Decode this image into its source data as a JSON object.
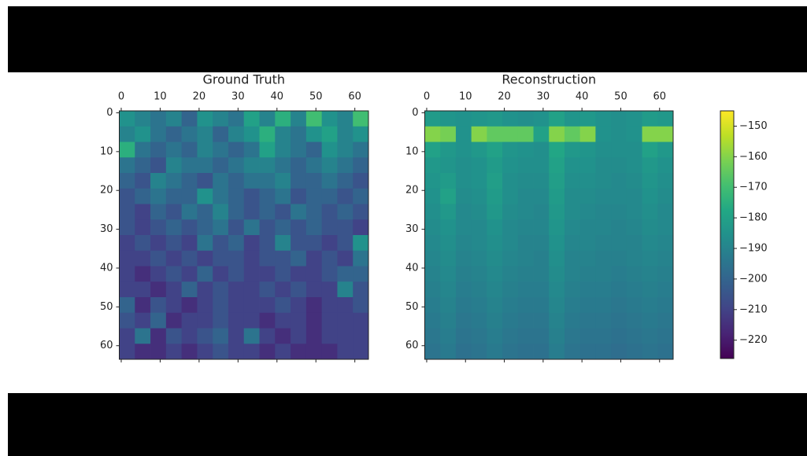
{
  "chart_data": [
    {
      "type": "heatmap",
      "title": "Ground Truth",
      "xlim": [
        -0.5,
        63.5
      ],
      "ylim": [
        -0.5,
        63.5
      ],
      "y_inverted": true,
      "xticks": [
        0,
        10,
        20,
        30,
        40,
        50,
        60
      ],
      "yticks": [
        0,
        10,
        20,
        30,
        40,
        50,
        60
      ],
      "z": [
        [
          -185,
          -190,
          -195,
          -190,
          -200,
          -185,
          -190,
          -195,
          -180,
          -190,
          -175,
          -190,
          -170,
          -185,
          -190,
          -170
        ],
        [
          -190,
          -185,
          -195,
          -200,
          -195,
          -190,
          -200,
          -190,
          -185,
          -175,
          -190,
          -195,
          -185,
          -180,
          -190,
          -185
        ],
        [
          -175,
          -195,
          -200,
          -195,
          -200,
          -190,
          -195,
          -200,
          -195,
          -180,
          -190,
          -195,
          -200,
          -185,
          -190,
          -195
        ],
        [
          -195,
          -200,
          -205,
          -190,
          -195,
          -195,
          -200,
          -195,
          -190,
          -190,
          -195,
          -200,
          -195,
          -190,
          -195,
          -200
        ],
        [
          -200,
          -205,
          -190,
          -195,
          -200,
          -205,
          -195,
          -200,
          -195,
          -195,
          -190,
          -200,
          -200,
          -195,
          -200,
          -205
        ],
        [
          -205,
          -200,
          -195,
          -200,
          -200,
          -185,
          -195,
          -200,
          -205,
          -200,
          -195,
          -205,
          -200,
          -200,
          -205,
          -200
        ],
        [
          -205,
          -210,
          -200,
          -205,
          -195,
          -200,
          -190,
          -200,
          -205,
          -200,
          -205,
          -195,
          -200,
          -205,
          -200,
          -205
        ],
        [
          -205,
          -210,
          -205,
          -200,
          -205,
          -200,
          -195,
          -205,
          -195,
          -205,
          -200,
          -205,
          -200,
          -205,
          -205,
          -210
        ],
        [
          -210,
          -205,
          -210,
          -205,
          -210,
          -195,
          -205,
          -200,
          -210,
          -205,
          -190,
          -205,
          -205,
          -210,
          -205,
          -185
        ],
        [
          -210,
          -210,
          -205,
          -210,
          -205,
          -210,
          -205,
          -205,
          -210,
          -205,
          -205,
          -200,
          -210,
          -205,
          -210,
          -195
        ],
        [
          -210,
          -215,
          -210,
          -205,
          -210,
          -200,
          -210,
          -205,
          -210,
          -210,
          -205,
          -210,
          -210,
          -205,
          -200,
          -200
        ],
        [
          -210,
          -210,
          -215,
          -210,
          -200,
          -210,
          -205,
          -210,
          -210,
          -205,
          -210,
          -205,
          -210,
          -210,
          -190,
          -205
        ],
        [
          -200,
          -215,
          -205,
          -210,
          -215,
          -210,
          -205,
          -210,
          -210,
          -210,
          -205,
          -210,
          -215,
          -210,
          -210,
          -205
        ],
        [
          -205,
          -210,
          -200,
          -215,
          -210,
          -210,
          -205,
          -210,
          -210,
          -215,
          -210,
          -210,
          -215,
          -210,
          -210,
          -210
        ],
        [
          -210,
          -195,
          -215,
          -205,
          -210,
          -205,
          -200,
          -210,
          -195,
          -210,
          -215,
          -210,
          -215,
          -210,
          -210,
          -210
        ],
        [
          -210,
          -215,
          -215,
          -210,
          -215,
          -210,
          -205,
          -210,
          -210,
          -215,
          -210,
          -215,
          -215,
          -215,
          -210,
          -210
        ]
      ]
    },
    {
      "type": "heatmap",
      "title": "Reconstruction",
      "xlim": [
        -0.5,
        63.5
      ],
      "ylim": [
        -0.5,
        63.5
      ],
      "y_inverted": true,
      "xticks": [
        0,
        10,
        20,
        30,
        40,
        50,
        60
      ],
      "yticks": [
        0,
        10,
        20,
        30,
        40,
        50,
        60
      ],
      "z": [
        [
          -182,
          -184,
          -185,
          -184,
          -183,
          -185,
          -186,
          -185,
          -180,
          -184,
          -183,
          -185,
          -186,
          -185,
          -182,
          -183
        ],
        [
          -160,
          -162,
          -185,
          -160,
          -165,
          -165,
          -165,
          -180,
          -160,
          -165,
          -160,
          -185,
          -186,
          -185,
          -160,
          -160
        ],
        [
          -180,
          -183,
          -185,
          -183,
          -180,
          -184,
          -185,
          -186,
          -178,
          -183,
          -184,
          -186,
          -186,
          -186,
          -180,
          -183
        ],
        [
          -183,
          -184,
          -186,
          -185,
          -182,
          -185,
          -186,
          -186,
          -180,
          -185,
          -185,
          -187,
          -187,
          -186,
          -183,
          -185
        ],
        [
          -184,
          -182,
          -186,
          -185,
          -181,
          -186,
          -187,
          -187,
          -181,
          -186,
          -186,
          -187,
          -188,
          -187,
          -184,
          -186
        ],
        [
          -185,
          -180,
          -187,
          -186,
          -182,
          -186,
          -188,
          -188,
          -182,
          -187,
          -187,
          -188,
          -188,
          -188,
          -185,
          -187
        ],
        [
          -186,
          -183,
          -188,
          -187,
          -183,
          -187,
          -188,
          -189,
          -183,
          -187,
          -188,
          -189,
          -189,
          -188,
          -186,
          -188
        ],
        [
          -187,
          -185,
          -188,
          -188,
          -185,
          -188,
          -189,
          -189,
          -184,
          -188,
          -189,
          -189,
          -190,
          -189,
          -187,
          -188
        ],
        [
          -188,
          -186,
          -189,
          -188,
          -186,
          -188,
          -190,
          -190,
          -185,
          -189,
          -189,
          -190,
          -190,
          -190,
          -188,
          -189
        ],
        [
          -189,
          -187,
          -190,
          -189,
          -187,
          -189,
          -190,
          -191,
          -186,
          -190,
          -190,
          -191,
          -191,
          -190,
          -189,
          -190
        ],
        [
          -190,
          -188,
          -191,
          -190,
          -188,
          -190,
          -191,
          -191,
          -187,
          -190,
          -191,
          -191,
          -192,
          -191,
          -190,
          -191
        ],
        [
          -191,
          -189,
          -192,
          -191,
          -189,
          -191,
          -192,
          -192,
          -188,
          -191,
          -192,
          -192,
          -193,
          -192,
          -191,
          -192
        ],
        [
          -192,
          -190,
          -193,
          -192,
          -190,
          -192,
          -193,
          -193,
          -189,
          -192,
          -193,
          -193,
          -194,
          -193,
          -192,
          -193
        ],
        [
          -193,
          -191,
          -194,
          -193,
          -191,
          -193,
          -194,
          -194,
          -190,
          -193,
          -194,
          -194,
          -195,
          -194,
          -193,
          -194
        ],
        [
          -194,
          -192,
          -195,
          -194,
          -192,
          -194,
          -195,
          -195,
          -191,
          -194,
          -195,
          -195,
          -196,
          -195,
          -194,
          -195
        ],
        [
          -195,
          -193,
          -196,
          -195,
          -193,
          -195,
          -196,
          -196,
          -192,
          -195,
          -196,
          -196,
          -197,
          -196,
          -195,
          -196
        ]
      ]
    }
  ],
  "colorbar": {
    "zlim": [
      -226,
      -145
    ],
    "zticks": [
      {
        "value": -150,
        "label": "−150"
      },
      {
        "value": -160,
        "label": "−160"
      },
      {
        "value": -170,
        "label": "−170"
      },
      {
        "value": -180,
        "label": "−180"
      },
      {
        "value": -190,
        "label": "−190"
      },
      {
        "value": -200,
        "label": "−200"
      },
      {
        "value": -210,
        "label": "−210"
      },
      {
        "value": -220,
        "label": "−220"
      }
    ]
  }
}
